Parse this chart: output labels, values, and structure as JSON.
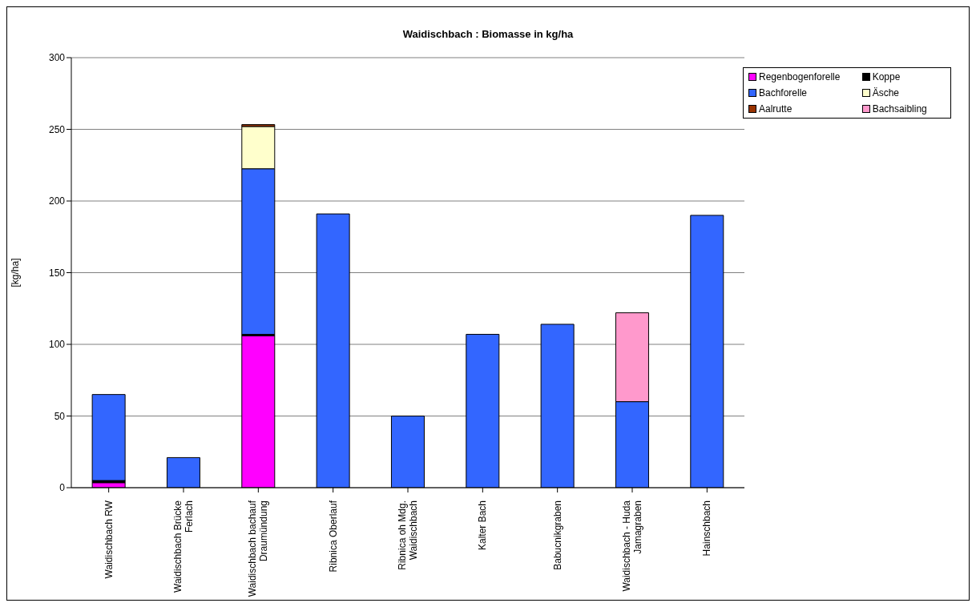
{
  "chart_data": {
    "type": "bar",
    "title": "Waidischbach : Biomasse in kg/ha",
    "ylabel": "[kg/ha]",
    "stacked": true,
    "categories": [
      "Waidischbach RW",
      "Waidischbach Brücke Ferlach",
      "Waidischbach bachauf Draumündung",
      "Ribnica Oberlauf",
      "Ribnica oh Mdg. Waidischbach",
      "Kalter Bach",
      "Babucnikgraben",
      "Waidischbach - Huda Jamagraben",
      "Hainschbach"
    ],
    "series": [
      {
        "name": "Regenbogenforelle",
        "color": "#ff00ff",
        "values": [
          3.5,
          0,
          106,
          0,
          0,
          0,
          0,
          0,
          0
        ]
      },
      {
        "name": "Koppe",
        "color": "#000000",
        "values": [
          1.5,
          0,
          1,
          0,
          0,
          0,
          0,
          0,
          0
        ]
      },
      {
        "name": "Bachforelle",
        "color": "#3366ff",
        "values": [
          60,
          21,
          115.5,
          191,
          50,
          107,
          114,
          60,
          190
        ]
      },
      {
        "name": "Äsche",
        "color": "#ffffcc",
        "values": [
          0,
          0,
          29.5,
          0,
          0,
          0,
          0,
          0,
          0
        ]
      },
      {
        "name": "Aalrutte",
        "color": "#993300",
        "values": [
          0,
          0,
          1.3,
          0,
          0,
          0,
          0,
          0,
          0
        ]
      },
      {
        "name": "Bachsaibling",
        "color": "#ff99cc",
        "values": [
          0,
          0,
          0,
          0,
          0,
          0,
          0,
          62,
          0
        ]
      }
    ],
    "ylim": [
      0,
      300
    ],
    "yticks": [
      0,
      50,
      100,
      150,
      200,
      250,
      300
    ],
    "grid": "y",
    "legend": "top right"
  }
}
